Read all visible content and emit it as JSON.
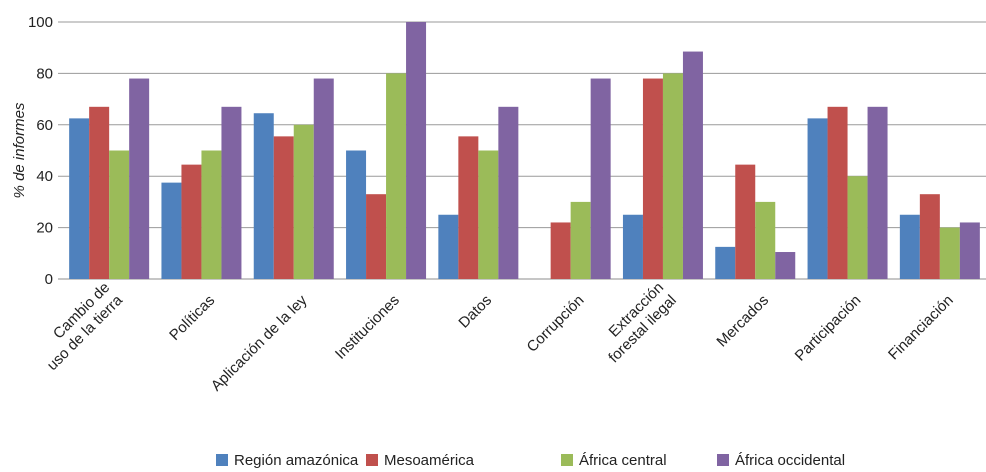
{
  "chart_data": {
    "type": "bar",
    "title": "",
    "xlabel": "",
    "ylabel": "% de informes",
    "ylim": [
      0,
      100
    ],
    "yticks": [
      0,
      20,
      40,
      60,
      80,
      100
    ],
    "grid": true,
    "legend_position": "bottom",
    "categories": [
      [
        "Cambio de",
        "uso de la tierra"
      ],
      [
        "Políticas"
      ],
      [
        "Aplicación de la ley"
      ],
      [
        "Instituciones"
      ],
      [
        "Datos"
      ],
      [
        "Corrupción"
      ],
      [
        "Extracción",
        "forestal ilegal"
      ],
      [
        "Mercados"
      ],
      [
        "Participación"
      ],
      [
        "Financiación"
      ]
    ],
    "series": [
      {
        "name": "Región amazónica",
        "color": "#4F81BD",
        "values": [
          62.5,
          37.5,
          64.5,
          50,
          25,
          0,
          25,
          12.5,
          62.5,
          25
        ]
      },
      {
        "name": "Mesoamérica",
        "color": "#C0504D",
        "values": [
          67,
          44.5,
          55.5,
          33,
          55.5,
          22,
          78,
          44.5,
          67,
          33
        ]
      },
      {
        "name": "África central",
        "color": "#9BBB59",
        "values": [
          50,
          50,
          60,
          80,
          50,
          30,
          80,
          30,
          40,
          20
        ]
      },
      {
        "name": "África occidental",
        "color": "#8064A2",
        "values": [
          78,
          67,
          78,
          100,
          67,
          78,
          88.5,
          10.5,
          67,
          22
        ]
      }
    ]
  }
}
